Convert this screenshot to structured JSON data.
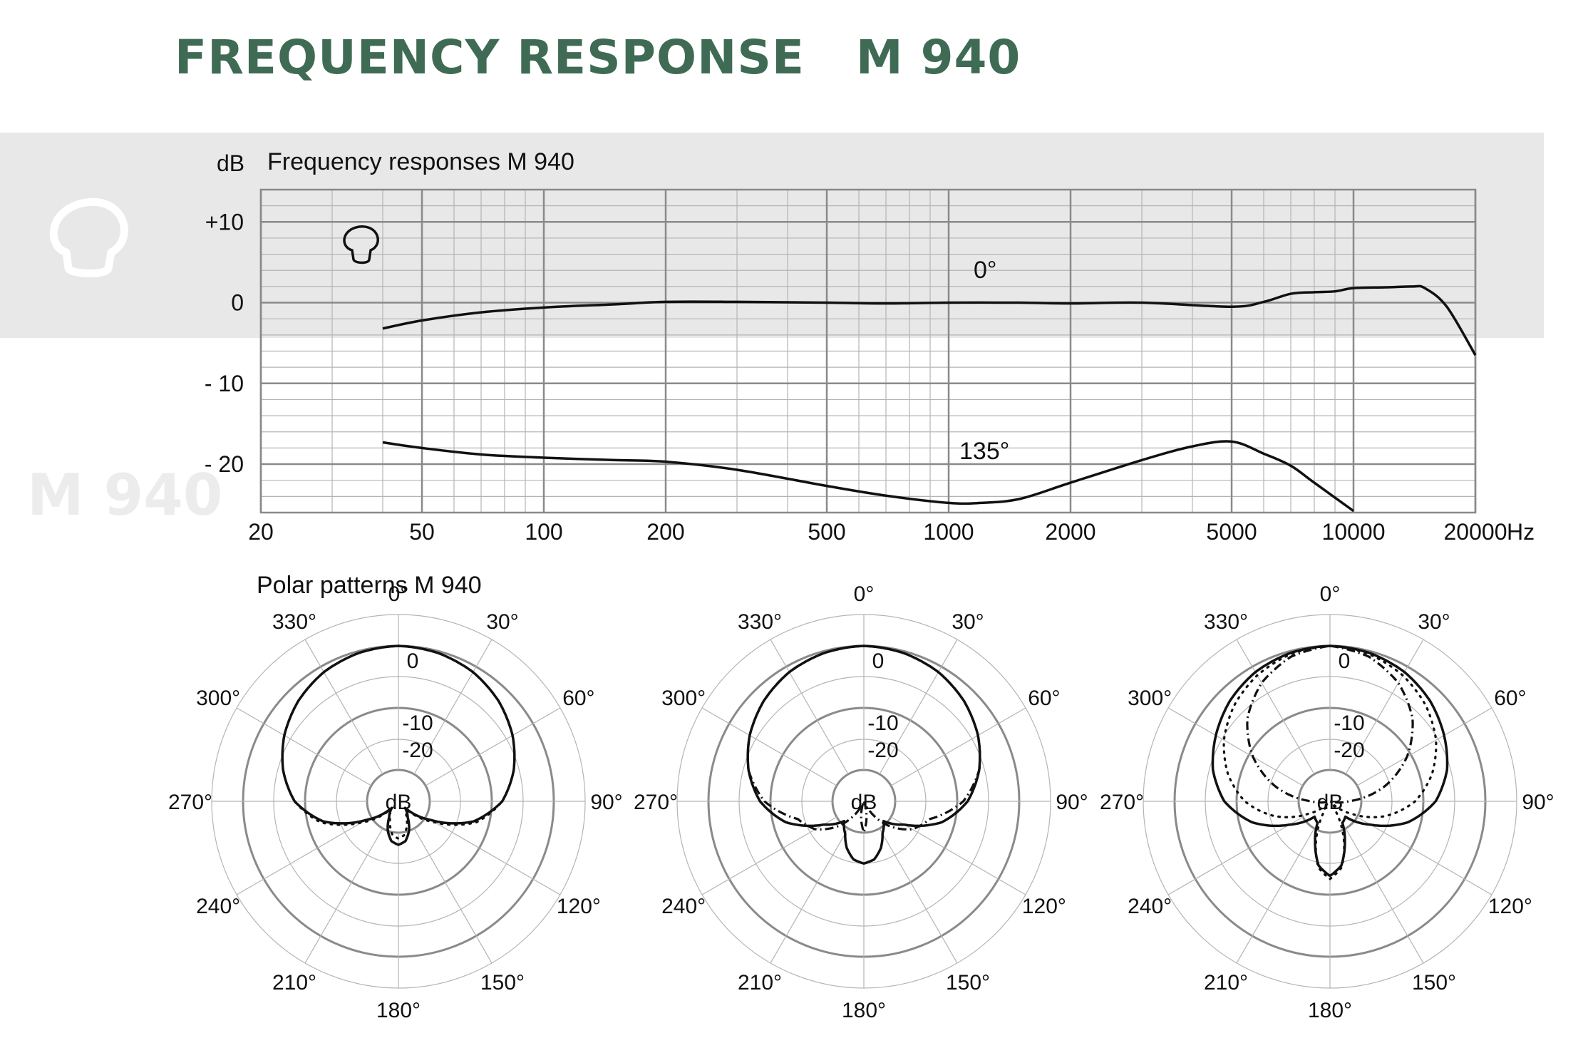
{
  "page": {
    "title": "FREQUENCY RESPONSE   M 940",
    "watermark": "M 940",
    "icon": "cardioid-mushroom-icon"
  },
  "chart_data": [
    {
      "type": "line",
      "title": "Frequency responses M 940",
      "xlabel": "Hz",
      "ylabel": "dB",
      "xscale": "log",
      "xlim": [
        20,
        20000
      ],
      "ylim": [
        -26,
        14
      ],
      "xticks": [
        20,
        50,
        100,
        200,
        500,
        1000,
        2000,
        5000,
        10000,
        20000
      ],
      "xtick_labels": [
        "20",
        "50",
        "100",
        "200",
        "500",
        "1000",
        "2000",
        "5000",
        "10000",
        "20000"
      ],
      "yticks": [
        10,
        0,
        -10,
        -20
      ],
      "ytick_labels": [
        "+10",
        "0",
        "- 10",
        "- 20"
      ],
      "grid": true,
      "series": [
        {
          "name": "0°",
          "x": [
            40,
            50,
            70,
            100,
            150,
            200,
            300,
            500,
            700,
            1000,
            1500,
            2000,
            3000,
            5000,
            6000,
            7000,
            8000,
            9000,
            10000,
            12000,
            14000,
            15000,
            17000,
            20000
          ],
          "y": [
            -3.2,
            -2.2,
            -1.2,
            -0.6,
            -0.2,
            0.1,
            0.1,
            0,
            -0.1,
            0,
            0,
            -0.1,
            0,
            -0.5,
            0.1,
            1.1,
            1.3,
            1.4,
            1.8,
            1.9,
            2.0,
            1.8,
            -0.5,
            -6.5
          ]
        },
        {
          "name": "135°",
          "x": [
            40,
            50,
            70,
            100,
            150,
            200,
            300,
            500,
            700,
            1000,
            1200,
            1500,
            2000,
            3000,
            4000,
            5000,
            6000,
            7000,
            8000,
            10000
          ],
          "y": [
            -17.3,
            -18,
            -18.8,
            -19.2,
            -19.5,
            -19.7,
            -20.7,
            -22.7,
            -23.9,
            -24.8,
            -24.8,
            -24.3,
            -22.3,
            -19.5,
            -17.8,
            -17.2,
            -18.7,
            -20.2,
            -22.3,
            -25.8
          ]
        }
      ],
      "annotations": [
        "0°",
        "135°"
      ]
    },
    {
      "type": "polar",
      "title": "Polar patterns M 940",
      "unit": "dB",
      "rlim": [
        -25,
        0
      ],
      "ring_labels": [
        "0",
        "-10",
        "-20"
      ],
      "angle_labels": [
        "0°",
        "30°",
        "60°",
        "90°",
        "120°",
        "150°",
        "180°",
        "210°",
        "240°",
        "270°",
        "300°",
        "330°"
      ],
      "angles": [
        0,
        15,
        30,
        45,
        60,
        75,
        90,
        105,
        120,
        135,
        150,
        160,
        170,
        180
      ],
      "plots": [
        {
          "series": [
            {
              "style": "solid",
              "values": [
                0,
                -0.3,
                -1,
                -2.2,
                -3.8,
                -5.8,
                -8.3,
                -12.5,
                -19,
                -23.5,
                -22,
                -20,
                -18.5,
                -18
              ]
            },
            {
              "style": "dotted",
              "values": [
                0,
                -0.3,
                -1,
                -2.2,
                -3.8,
                -5.8,
                -8.3,
                -12,
                -18.2,
                -23,
                -22.5,
                -21,
                -19.5,
                -19
              ]
            }
          ]
        },
        {
          "series": [
            {
              "style": "solid",
              "values": [
                0,
                -0.3,
                -1,
                -2.2,
                -3.8,
                -5.8,
                -8.3,
                -12,
                -17.5,
                -20.5,
                -19,
                -17,
                -15.5,
                -15
              ]
            },
            {
              "style": "dashdot",
              "values": [
                0,
                -0.3,
                -1,
                -2.2,
                -3.8,
                -5.8,
                -9,
                -14,
                -16,
                -19.5,
                -23.5,
                -24.8,
                -22.5,
                -20
              ]
            }
          ]
        },
        {
          "series": [
            {
              "style": "solid",
              "values": [
                0,
                -0.3,
                -1,
                -2.2,
                -3.8,
                -5.5,
                -8,
                -12,
                -17.5,
                -21.5,
                -21,
                -18,
                -14.5,
                -13
              ]
            },
            {
              "style": "dotted",
              "values": [
                0,
                -0.5,
                -1.6,
                -3.2,
                -5.3,
                -8,
                -11.3,
                -15.8,
                -21,
                -24.5,
                -23,
                -18.5,
                -14.2,
                -12.5
              ]
            },
            {
              "style": "dashdot",
              "values": [
                0,
                -0.9,
                -3,
                -6.2,
                -10.7,
                -16,
                -22,
                -25,
                -25,
                -25,
                -25,
                -25,
                -25,
                -25
              ]
            }
          ]
        }
      ]
    }
  ]
}
